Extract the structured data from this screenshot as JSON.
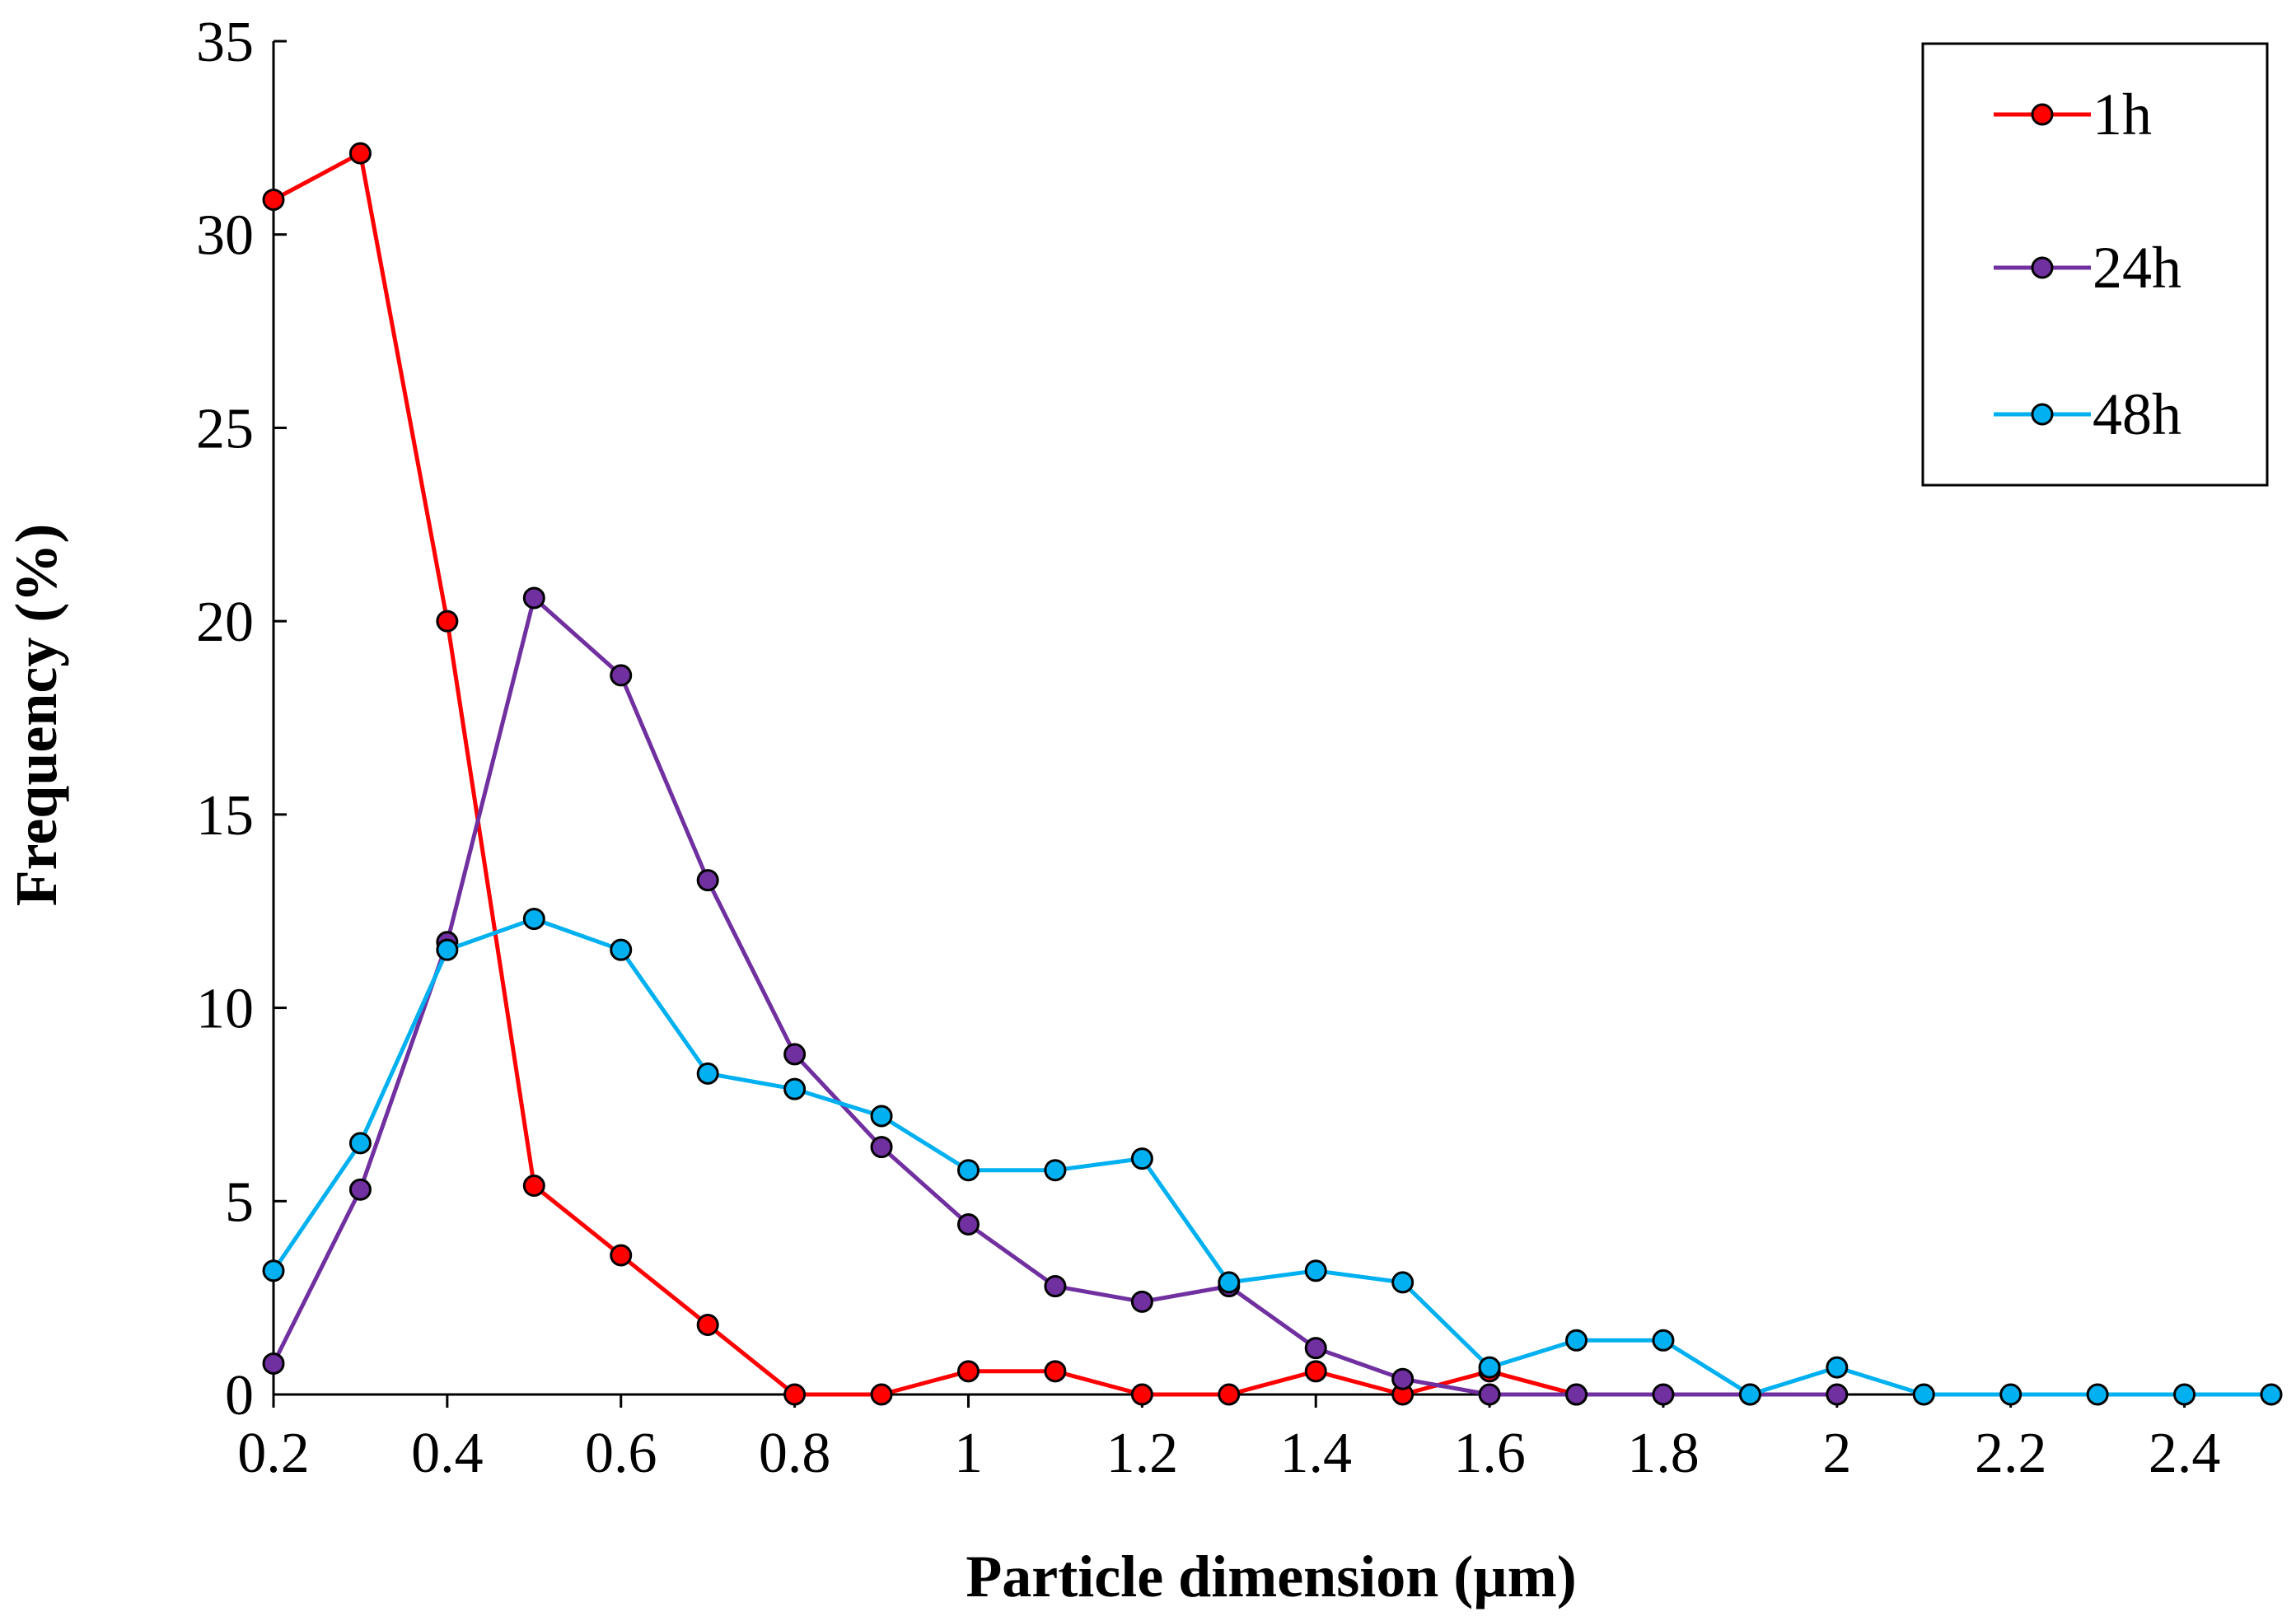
{
  "chart_data": {
    "type": "line",
    "title": "",
    "xlabel": "Particle dimension (µm)",
    "ylabel": "Frequency (%)",
    "xlim": [
      0.2,
      2.5
    ],
    "ylim": [
      0,
      35
    ],
    "grid": false,
    "legend_position": "top-right",
    "x_ticks": [
      0.2,
      0.4,
      0.6,
      0.8,
      1.0,
      1.2,
      1.4,
      1.6,
      1.8,
      2.0,
      2.2,
      2.4
    ],
    "x_tick_labels": [
      "0.2",
      "0.4",
      "0.6",
      "0.8",
      "1",
      "1.2",
      "1.4",
      "1.6",
      "1.8",
      "2",
      "2.2",
      "2.4"
    ],
    "y_ticks": [
      0,
      5,
      10,
      15,
      20,
      25,
      30,
      35
    ],
    "y_tick_labels": [
      "0",
      "5",
      "10",
      "15",
      "20",
      "25",
      "30",
      "35"
    ],
    "series": [
      {
        "name": "1h",
        "color": "#ff0000",
        "x": [
          0.2,
          0.3,
          0.4,
          0.5,
          0.6,
          0.7,
          0.8,
          0.9,
          1.0,
          1.1,
          1.2,
          1.3,
          1.4,
          1.5,
          1.6,
          1.7
        ],
        "values": [
          30.9,
          32.1,
          20.0,
          5.4,
          3.6,
          1.8,
          0.0,
          0.0,
          0.6,
          0.6,
          0.0,
          0.0,
          0.6,
          0.0,
          0.6,
          0.0
        ]
      },
      {
        "name": "24h",
        "color": "#7030a0",
        "x": [
          0.2,
          0.3,
          0.4,
          0.5,
          0.6,
          0.7,
          0.8,
          0.9,
          1.0,
          1.1,
          1.2,
          1.3,
          1.4,
          1.5,
          1.6,
          1.7,
          1.8,
          1.9,
          2.0
        ],
        "values": [
          0.8,
          5.3,
          11.7,
          20.6,
          18.6,
          13.3,
          8.8,
          6.4,
          4.4,
          2.8,
          2.4,
          2.8,
          1.2,
          0.4,
          0.0,
          0.0,
          0.0,
          0.0,
          0.0
        ]
      },
      {
        "name": "48h",
        "color": "#00b0f0",
        "x": [
          0.2,
          0.3,
          0.4,
          0.5,
          0.6,
          0.7,
          0.8,
          0.9,
          1.0,
          1.1,
          1.2,
          1.3,
          1.4,
          1.5,
          1.6,
          1.7,
          1.8,
          1.9,
          2.0,
          2.1,
          2.2,
          2.3,
          2.4,
          2.5
        ],
        "values": [
          3.2,
          6.5,
          11.5,
          12.3,
          11.5,
          8.3,
          7.9,
          7.2,
          5.8,
          5.8,
          6.1,
          2.9,
          3.2,
          2.9,
          0.7,
          1.4,
          1.4,
          0.0,
          0.7,
          0.0,
          0.0,
          0.0,
          0.0,
          0.0
        ]
      }
    ]
  }
}
